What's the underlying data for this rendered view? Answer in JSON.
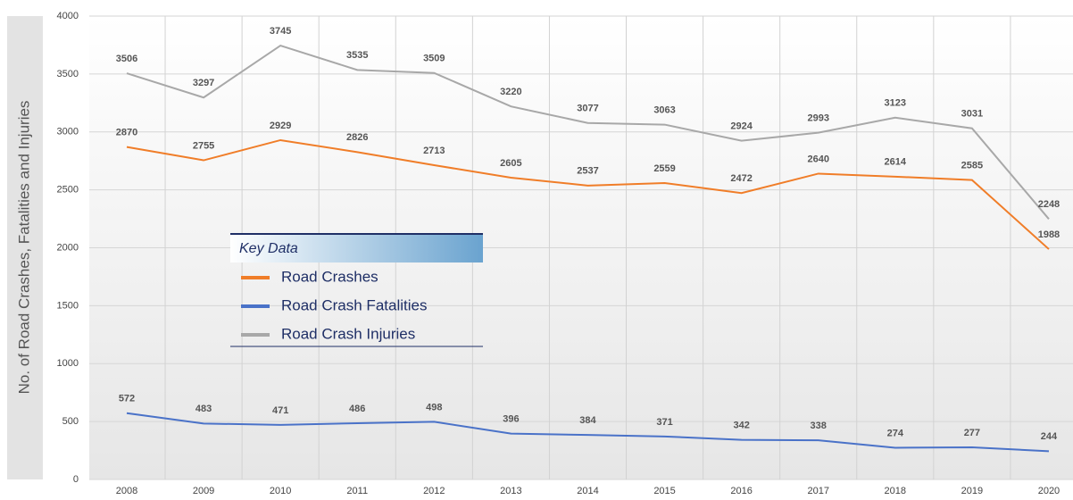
{
  "chart_data": {
    "type": "line",
    "y_label": "No. of Road Crashes, Fatalities and Injuries",
    "legend_title": "Key Data",
    "categories": [
      "2008",
      "2009",
      "2010",
      "2011",
      "2012",
      "2013",
      "2014",
      "2015",
      "2016",
      "2017",
      "2018",
      "2019",
      "2020"
    ],
    "series": [
      {
        "name": "Road Crashes",
        "color": "#f07d28",
        "values": [
          2870,
          2755,
          2929,
          2826,
          2713,
          2605,
          2537,
          2559,
          2472,
          2640,
          2614,
          2585,
          1988
        ]
      },
      {
        "name": "Road Crash Fatalities",
        "color": "#4a72c8",
        "values": [
          572,
          483,
          471,
          486,
          498,
          396,
          384,
          371,
          342,
          338,
          274,
          277,
          244
        ]
      },
      {
        "name": "Road Crash Injuries",
        "color": "#a8a8a8",
        "values": [
          3506,
          3297,
          3745,
          3535,
          3509,
          3220,
          3077,
          3063,
          2924,
          2993,
          3123,
          3031,
          2248
        ]
      }
    ],
    "ylim": [
      0,
      4000
    ],
    "yticks": [
      0,
      500,
      1000,
      1500,
      2000,
      2500,
      3000,
      3500,
      4000
    ],
    "grid": true
  }
}
